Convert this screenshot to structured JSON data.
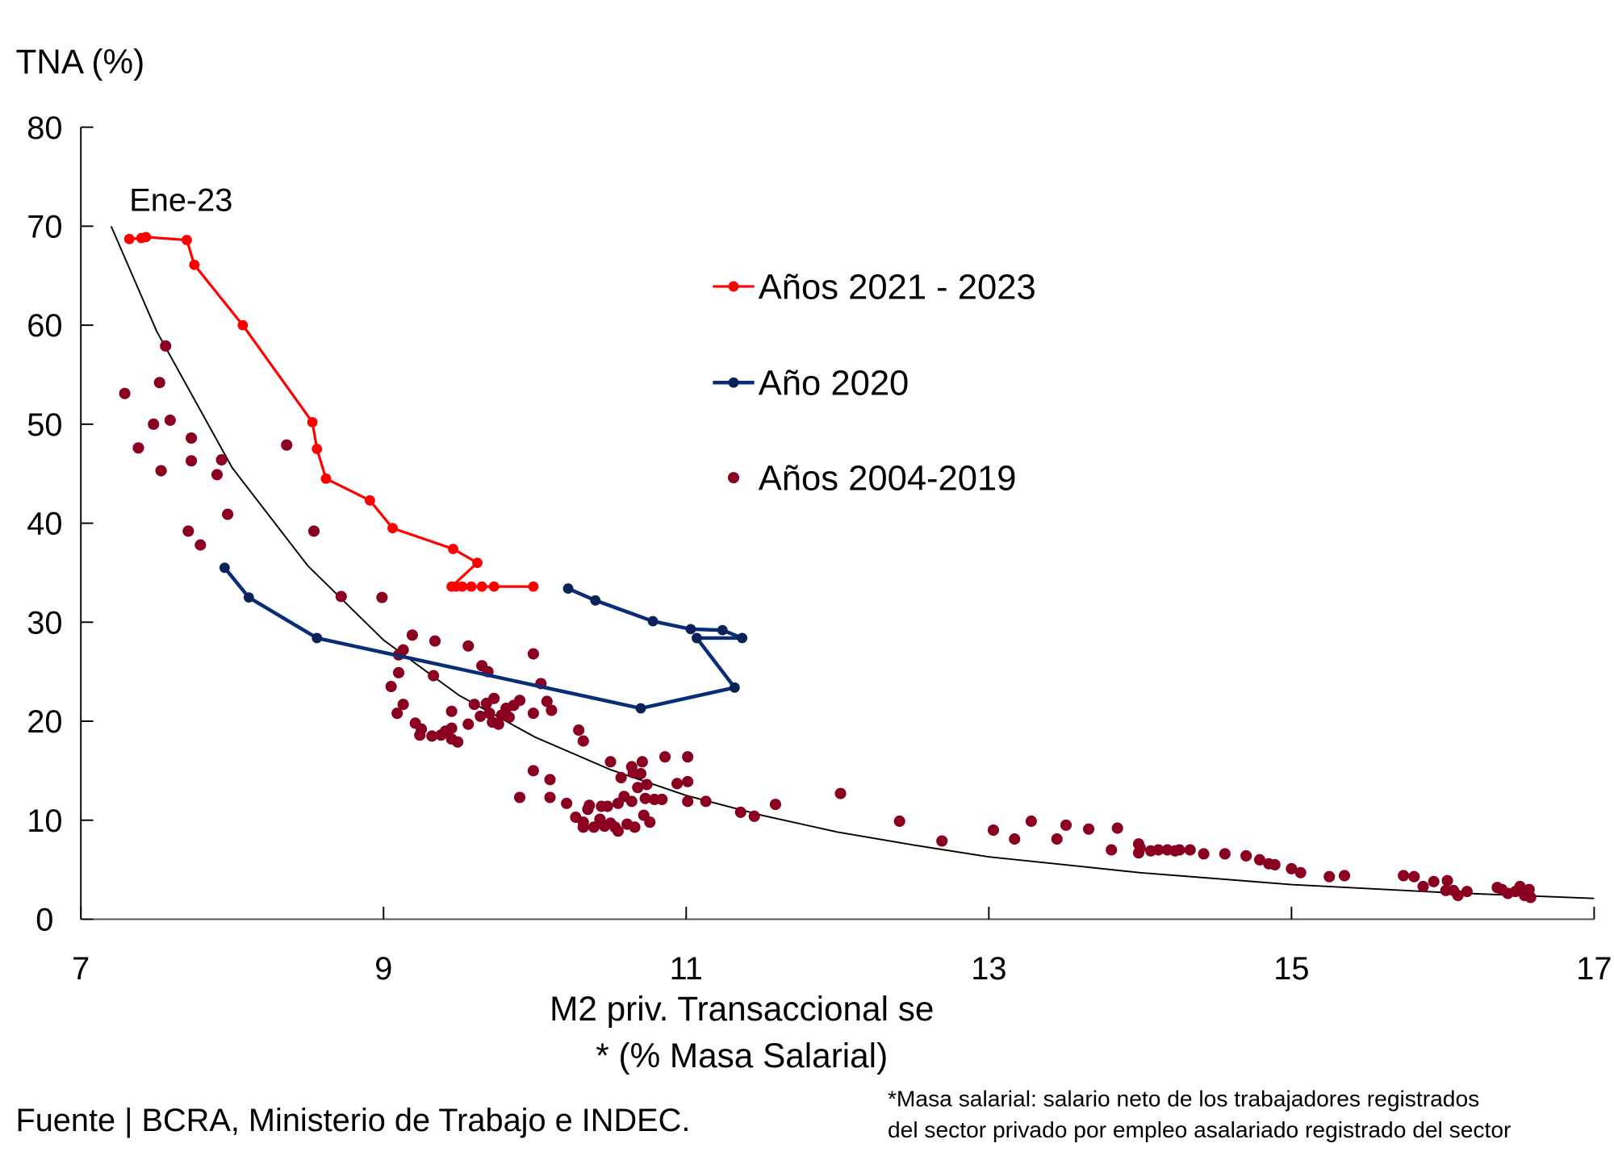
{
  "chart_data": {
    "type": "scatter",
    "ylabel": "TNA (%)",
    "xlabel_lines": [
      "M2 priv. Transaccional se",
      "* (% Masa Salarial)"
    ],
    "xlim": [
      7,
      17
    ],
    "ylim": [
      0,
      80
    ],
    "xticks": [
      7,
      9,
      11,
      13,
      15,
      17
    ],
    "yticks": [
      0,
      10,
      20,
      30,
      40,
      50,
      60,
      70,
      80
    ],
    "grid": false,
    "legend_placement": "center-right",
    "annotations": [
      {
        "text": "Ene-23",
        "x": 7.32,
        "y": 68.7
      }
    ],
    "series": [
      {
        "name": "Años 2021 - 2023",
        "style": "line-markers",
        "color": "#ff0000",
        "x": [
          9.99,
          9.73,
          9.65,
          9.58,
          9.52,
          9.48,
          9.45,
          9.62,
          9.46,
          9.06,
          8.91,
          8.62,
          8.56,
          8.53,
          8.07,
          7.75,
          7.7,
          7.43,
          7.4,
          7.32
        ],
        "y": [
          33.6,
          33.6,
          33.6,
          33.6,
          33.6,
          33.6,
          33.6,
          36.0,
          37.4,
          39.5,
          42.3,
          44.5,
          47.5,
          50.2,
          60.0,
          66.1,
          68.6,
          68.9,
          68.8,
          68.7
        ]
      },
      {
        "name": "Año 2020",
        "style": "line-markers",
        "color": "#0a2d7a",
        "x": [
          7.95,
          8.11,
          8.56,
          10.7,
          11.32,
          11.07,
          11.37,
          11.24,
          11.03,
          10.78,
          10.4,
          10.22
        ],
        "y": [
          35.5,
          32.5,
          28.4,
          21.3,
          23.4,
          28.4,
          28.4,
          29.2,
          29.3,
          30.1,
          32.2,
          33.4
        ]
      },
      {
        "name": "Años 2004-2019",
        "style": "markers",
        "color": "#8b0020",
        "x": [
          7.29,
          7.38,
          7.52,
          7.48,
          7.53,
          7.59,
          7.56,
          7.73,
          7.73,
          7.93,
          7.9,
          7.97,
          7.71,
          7.79,
          8.36,
          8.54,
          8.72,
          8.99,
          9.19,
          9.34,
          9.56,
          9.99,
          9.13,
          9.1,
          9.1,
          9.05,
          9.33,
          9.65,
          9.69,
          10.04,
          9.13,
          9.09,
          9.21,
          9.24,
          9.25,
          9.32,
          9.38,
          9.41,
          9.45,
          9.45,
          9.49,
          9.45,
          9.56,
          9.6,
          9.64,
          9.68,
          9.7,
          9.73,
          9.76,
          9.78,
          9.81,
          9.83,
          9.86,
          9.9,
          9.72,
          9.99,
          10.08,
          10.11,
          10.29,
          10.32,
          9.99,
          10.1,
          9.9,
          10.1,
          10.21,
          10.5,
          10.64,
          10.71,
          10.86,
          11.01,
          10.57,
          10.65,
          10.7,
          10.74,
          10.68,
          10.94,
          11.01,
          10.59,
          10.64,
          10.55,
          10.73,
          10.79,
          10.84,
          11.01,
          11.13,
          10.36,
          10.44,
          10.48,
          10.35,
          10.27,
          10.32,
          10.32,
          10.39,
          10.43,
          10.46,
          10.5,
          10.53,
          10.55,
          10.61,
          10.66,
          10.72,
          10.76,
          11.36,
          11.45,
          11.59,
          12.02,
          12.41,
          12.69,
          13.03,
          13.17,
          13.28,
          13.45,
          13.51,
          13.66,
          13.85,
          13.81,
          13.99,
          14.0,
          13.99,
          14.07,
          14.12,
          14.18,
          14.23,
          14.26,
          14.33,
          14.42,
          14.56,
          14.7,
          14.79,
          14.85,
          14.89,
          15.0,
          15.06,
          15.25,
          15.35,
          15.74,
          15.81,
          15.94,
          15.87,
          16.03,
          16.02,
          16.07,
          16.1,
          16.16,
          16.36,
          16.39,
          16.43,
          16.48,
          16.51,
          16.54,
          16.57,
          16.58
        ],
        "y": [
          53.1,
          47.6,
          54.2,
          50.0,
          45.3,
          50.4,
          57.9,
          48.6,
          46.3,
          46.4,
          44.9,
          40.9,
          39.2,
          37.8,
          47.9,
          39.2,
          32.6,
          32.5,
          28.7,
          28.1,
          27.6,
          26.8,
          27.2,
          26.7,
          24.9,
          23.5,
          24.6,
          25.6,
          25.0,
          23.8,
          21.7,
          20.8,
          19.8,
          18.6,
          19.2,
          18.5,
          18.6,
          19.0,
          19.3,
          18.2,
          17.9,
          21.0,
          19.7,
          21.7,
          20.5,
          21.8,
          20.8,
          22.3,
          19.7,
          20.6,
          21.3,
          20.4,
          21.6,
          22.1,
          19.9,
          20.8,
          22.0,
          21.1,
          19.1,
          18.0,
          15.0,
          14.1,
          12.3,
          12.3,
          11.7,
          15.9,
          15.4,
          15.9,
          16.4,
          16.4,
          14.3,
          14.8,
          14.7,
          13.6,
          13.3,
          13.7,
          13.9,
          12.4,
          11.9,
          11.7,
          12.2,
          12.1,
          12.1,
          11.9,
          11.9,
          11.5,
          11.4,
          11.4,
          11.1,
          10.3,
          9.8,
          9.3,
          9.3,
          10.1,
          9.4,
          9.7,
          9.3,
          8.9,
          9.6,
          9.3,
          10.5,
          9.8,
          10.8,
          10.4,
          11.6,
          12.7,
          9.9,
          7.9,
          9.0,
          8.1,
          9.9,
          8.1,
          9.5,
          9.1,
          9.2,
          7.0,
          7.6,
          7.2,
          6.7,
          6.9,
          7.0,
          7.0,
          6.9,
          7.0,
          7.0,
          6.6,
          6.6,
          6.4,
          6.0,
          5.6,
          5.5,
          5.1,
          4.7,
          4.3,
          4.4,
          4.4,
          4.3,
          3.8,
          3.3,
          3.9,
          2.9,
          2.9,
          2.4,
          2.8,
          3.2,
          3.0,
          2.6,
          2.8,
          3.3,
          2.4,
          3.0,
          2.2
        ]
      }
    ],
    "trendline": {
      "color": "#000000",
      "x": [
        7.2,
        7.5,
        8,
        8.5,
        9,
        9.5,
        10,
        10.5,
        11,
        11.5,
        12,
        12.5,
        13,
        13.5,
        14,
        14.5,
        15,
        15.5,
        16,
        16.5,
        17
      ],
      "y": [
        70.0,
        59.4,
        45.6,
        35.7,
        28.2,
        22.6,
        18.4,
        15.1,
        12.5,
        10.5,
        8.8,
        7.5,
        6.3,
        5.5,
        4.7,
        4.1,
        3.5,
        3.1,
        2.7,
        2.4,
        2.1
      ]
    }
  },
  "footer": {
    "source": "Fuente  | BCRA, Ministerio de Trabajo e INDEC.",
    "footnote_lines": [
      "*Masa salarial: salario neto de los trabajadores registrados",
      "del sector privado por empleo asalariado registrado del sector"
    ]
  }
}
